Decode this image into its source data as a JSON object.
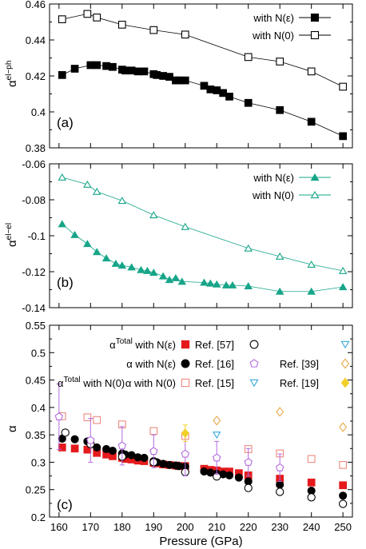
{
  "xlabel": "Pressure (GPa)",
  "colors": {
    "black": "#000000",
    "teal": "#17a589",
    "red": "#e41a1c",
    "pink": "#ef8a80",
    "violet": "#b36ae2",
    "cyan": "#3aa8d8",
    "orange": "#e8a94a",
    "yellow": "#f2d02a"
  },
  "chart_data": [
    {
      "type": "line",
      "panel_label": "(a)",
      "ylabel": "α",
      "ylabel_sup": "el−ph",
      "xlim": [
        157,
        253
      ],
      "ylim": [
        0.38,
        0.46
      ],
      "yticks": [
        "0.38",
        "0.4",
        "0.42",
        "0.44",
        "0.46"
      ],
      "legend_position": "top-right",
      "series": [
        {
          "name": "with N(ε)",
          "marker": "square-filled",
          "color": "#000000",
          "x": [
            161,
            165,
            170,
            172,
            175,
            177,
            180,
            181,
            183,
            185,
            187,
            190,
            191,
            193,
            195,
            197,
            198,
            200,
            206,
            208,
            210,
            212,
            214,
            220,
            230,
            240,
            250
          ],
          "y": [
            0.4205,
            0.424,
            0.426,
            0.426,
            0.4255,
            0.425,
            0.4235,
            0.423,
            0.423,
            0.4225,
            0.4225,
            0.421,
            0.4205,
            0.42,
            0.4195,
            0.4175,
            0.4175,
            0.4175,
            0.4145,
            0.4125,
            0.412,
            0.4105,
            0.4085,
            0.405,
            0.401,
            0.3945,
            0.3865
          ]
        },
        {
          "name": "with N(0)",
          "marker": "square-open",
          "color": "#000000",
          "x": [
            161,
            169,
            172,
            180,
            190,
            200,
            220,
            230,
            240,
            250
          ],
          "y": [
            0.4515,
            0.4545,
            0.4525,
            0.4485,
            0.4455,
            0.443,
            0.4305,
            0.428,
            0.4225,
            0.414
          ]
        }
      ]
    },
    {
      "type": "line",
      "panel_label": "(b)",
      "ylabel": "α",
      "ylabel_sup": "el−el",
      "xlim": [
        157,
        253
      ],
      "ylim": [
        -0.14,
        -0.06
      ],
      "yticks": [
        "-0.14",
        "-0.12",
        "-0.1",
        "-0.08",
        "-0.06"
      ],
      "legend_position": "top-right",
      "series": [
        {
          "name": "with N(ε)",
          "marker": "triangle-filled",
          "color": "#17a589",
          "x": [
            161,
            165,
            169,
            172,
            175,
            178,
            180,
            183,
            186,
            188,
            190,
            193,
            195,
            197,
            199,
            206,
            208,
            210,
            213,
            215,
            220,
            230,
            240,
            250
          ],
          "y": [
            -0.0935,
            -0.0995,
            -0.1045,
            -0.109,
            -0.1125,
            -0.1155,
            -0.1165,
            -0.1175,
            -0.119,
            -0.1195,
            -0.1205,
            -0.1225,
            -0.1245,
            -0.1235,
            -0.1255,
            -0.126,
            -0.1265,
            -0.127,
            -0.1275,
            -0.1275,
            -0.128,
            -0.131,
            -0.131,
            -0.1285
          ]
        },
        {
          "name": "with N(0)",
          "marker": "triangle-open",
          "color": "#17a589",
          "x": [
            161,
            169,
            172,
            180,
            190,
            200,
            220,
            230,
            240,
            250
          ],
          "y": [
            -0.0675,
            -0.0715,
            -0.0755,
            -0.0805,
            -0.0885,
            -0.095,
            -0.107,
            -0.1115,
            -0.116,
            -0.1195
          ]
        }
      ]
    },
    {
      "type": "scatter",
      "panel_label": "(c)",
      "ylabel": "α",
      "xlim": [
        157,
        253
      ],
      "ylim": [
        0.2,
        0.55
      ],
      "xticks": [
        "160",
        "170",
        "180",
        "190",
        "200",
        "210",
        "220",
        "230",
        "240",
        "250"
      ],
      "yticks": [
        "0.2",
        "0.25",
        "0.3",
        "0.35",
        "0.4",
        "0.45",
        "0.5",
        "0.55"
      ],
      "legend_position": "top",
      "legend_rows": [
        [
          {
            "label": "α",
            "sup": "Total",
            "tail": " with N(ε)",
            "marker": "square-filled",
            "color": "#e41a1c"
          },
          {
            "label": "Ref. [57]",
            "marker": "circle-open",
            "color": "#000000"
          },
          {
            "label": "",
            "marker": "triangle-down-open",
            "color": "#3aa8d8"
          }
        ],
        [
          {
            "label": "α with N(ε)",
            "marker": "circle-filled",
            "color": "#000000"
          },
          {
            "label": "Ref. [16]",
            "marker": "pentagon-open",
            "color": "#b36ae2"
          },
          {
            "label": "Ref. [39]",
            "marker": "diamond-open",
            "color": "#e8a94a"
          }
        ],
        [
          {
            "label": "α with N(0)",
            "marker": "square-open",
            "color": "#ef8a80"
          },
          {
            "label": "Ref. [15]",
            "marker": "triangle-down-open",
            "color": "#3aa8d8"
          },
          {
            "label": "Ref. [19]",
            "marker": "diamond-filled",
            "color": "#f2d02a"
          }
        ]
      ],
      "legend_extra": {
        "label": "α",
        "sup": "Total",
        "tail": " with N(0)"
      },
      "series": [
        {
          "name": "α with N(ε)",
          "marker": "square-filled",
          "color": "#e41a1c",
          "x": [
            161,
            165,
            169,
            172,
            175,
            177,
            180,
            181,
            183,
            185,
            187,
            190,
            191,
            193,
            195,
            197,
            198,
            200,
            206,
            208,
            210,
            212,
            214,
            217,
            220,
            230,
            240,
            250
          ],
          "y": [
            0.327,
            0.325,
            0.323,
            0.317,
            0.314,
            0.311,
            0.308,
            0.306,
            0.305,
            0.303,
            0.302,
            0.299,
            0.298,
            0.296,
            0.295,
            0.294,
            0.293,
            0.293,
            0.288,
            0.286,
            0.285,
            0.283,
            0.283,
            0.28,
            0.276,
            0.27,
            0.263,
            0.258
          ]
        },
        {
          "name": "α with N(ε)",
          "marker": "circle-filled",
          "color": "#000000",
          "x": [
            161,
            165,
            169,
            172,
            175,
            177,
            180,
            181,
            183,
            185,
            187,
            190,
            191,
            193,
            195,
            197,
            198,
            200,
            206,
            208,
            210,
            212,
            214,
            217,
            220,
            230,
            240,
            250
          ],
          "y": [
            0.343,
            0.342,
            0.338,
            0.327,
            0.324,
            0.321,
            0.316,
            0.314,
            0.313,
            0.309,
            0.308,
            0.302,
            0.3,
            0.297,
            0.295,
            0.294,
            0.293,
            0.292,
            0.283,
            0.281,
            0.279,
            0.278,
            0.276,
            0.272,
            0.265,
            0.259,
            0.248,
            0.239
          ]
        },
        {
          "name": "α with N(0)",
          "marker": "square-open",
          "color": "#ef8a80",
          "x": [
            161,
            169,
            172,
            180,
            190,
            200,
            220,
            230,
            240,
            250
          ],
          "y": [
            0.384,
            0.382,
            0.377,
            0.369,
            0.357,
            0.348,
            0.324,
            0.316,
            0.306,
            0.295
          ]
        },
        {
          "name": "Ref. [57]",
          "marker": "circle-open",
          "color": "#000000",
          "x": [
            162,
            170,
            180,
            190,
            200,
            210,
            220,
            230,
            240,
            250
          ],
          "y": [
            0.354,
            0.333,
            0.31,
            0.3,
            0.282,
            0.274,
            0.253,
            0.246,
            0.236,
            0.224
          ]
        },
        {
          "name": "Ref. [16]",
          "marker": "pentagon-open",
          "color": "#b36ae2",
          "x": [
            160,
            170,
            180,
            190,
            200,
            210,
            220,
            230
          ],
          "y": [
            0.383,
            0.34,
            0.33,
            0.32,
            0.315,
            0.308,
            0.3,
            0.29
          ],
          "err": [
            0.06,
            0.04,
            0.035,
            0.03,
            0.04,
            0.03,
            0.025,
            0.025
          ]
        },
        {
          "name": "Ref. [39]",
          "marker": "diamond-open",
          "color": "#e8a94a",
          "x": [
            210,
            230,
            250
          ],
          "y": [
            0.376,
            0.392,
            0.364
          ]
        },
        {
          "name": "Ref. [15]",
          "marker": "triangle-down-open",
          "color": "#3aa8d8",
          "x": [
            210
          ],
          "y": [
            0.35
          ]
        },
        {
          "name": "Ref. [19]",
          "marker": "diamond-filled",
          "color": "#f2d02a",
          "x": [
            200
          ],
          "y": [
            0.353
          ],
          "err": [
            0.015
          ]
        }
      ]
    }
  ]
}
